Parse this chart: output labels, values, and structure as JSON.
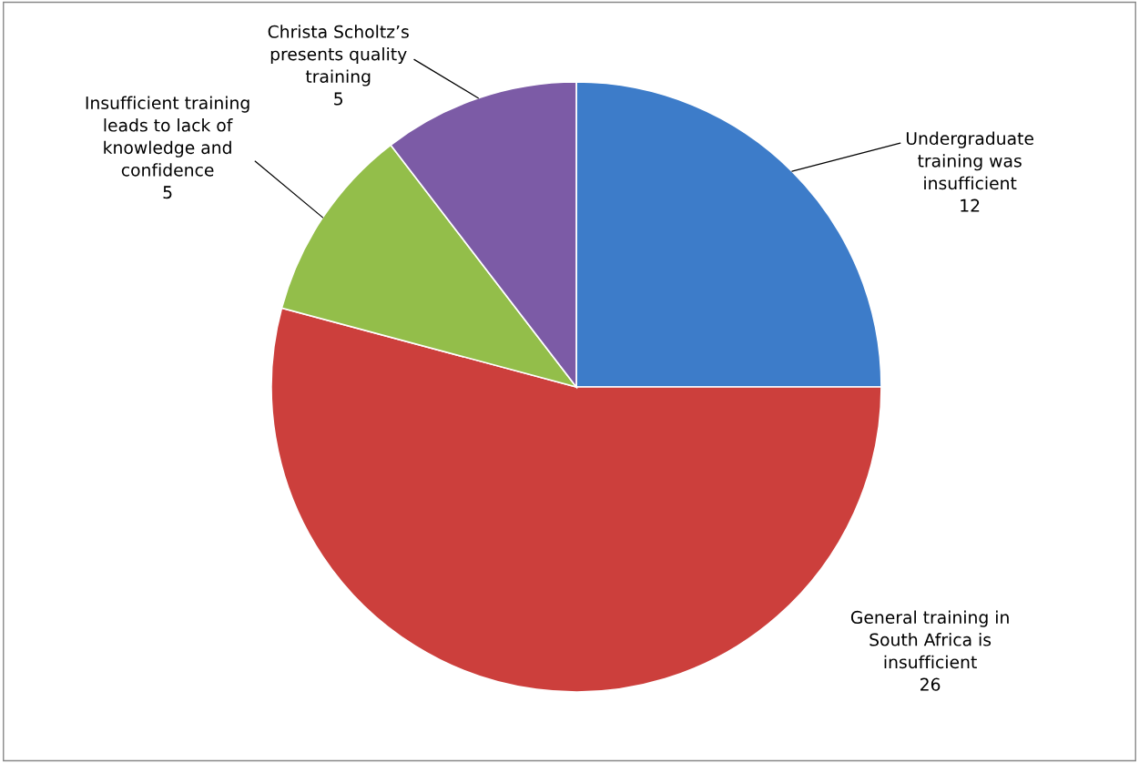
{
  "chart_data": {
    "type": "pie",
    "categories": [
      "Undergraduate\ntraining was\ninsufficient",
      "General training in\nSouth Africa is\ninsufficient",
      "Insufficient training\nleads to lack of\nknowledge and\nconfidence",
      "Christa Scholtz’s\npresents quality\ntraining"
    ],
    "values": [
      12,
      26,
      5,
      5
    ],
    "colors": [
      "#3d7cc9",
      "#cc3f3c",
      "#93be4a",
      "#7c5ba6"
    ],
    "data_labels": true,
    "legend": false
  }
}
